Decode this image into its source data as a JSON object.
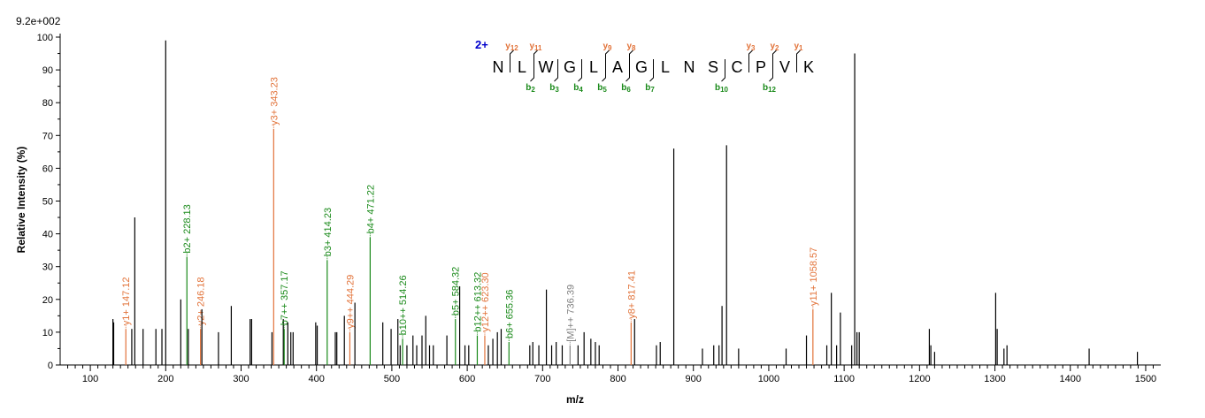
{
  "chart_data": {
    "type": "bar",
    "title": "",
    "xlabel": "m/z",
    "ylabel": "Relative   Intensity (%)",
    "scale_label": "9.2e+002",
    "xlim": [
      60,
      1520
    ],
    "ylim": [
      0,
      100
    ],
    "x_ticks": [
      100,
      200,
      300,
      400,
      500,
      600,
      700,
      800,
      900,
      1000,
      1100,
      1200,
      1300,
      1400,
      1500
    ],
    "y_ticks": [
      0,
      10,
      20,
      30,
      40,
      50,
      60,
      70,
      80,
      90,
      100
    ],
    "colors": {
      "unmatched": "#000000",
      "y_ion": "#e2733a",
      "b_ion": "#1a8a1a",
      "precursor": "#808080",
      "charge": "#0000cc"
    },
    "peaks": [
      {
        "mz": 130,
        "i": 14
      },
      {
        "mz": 131,
        "i": 13
      },
      {
        "mz": 147.12,
        "i": 11,
        "ion": "y",
        "label": "y1+ 147.12"
      },
      {
        "mz": 155,
        "i": 11
      },
      {
        "mz": 159,
        "i": 45
      },
      {
        "mz": 170,
        "i": 11
      },
      {
        "mz": 187,
        "i": 11
      },
      {
        "mz": 195,
        "i": 11
      },
      {
        "mz": 200,
        "i": 99
      },
      {
        "mz": 220,
        "i": 20
      },
      {
        "mz": 228.13,
        "i": 33,
        "ion": "b",
        "label": "b2+ 228.13"
      },
      {
        "mz": 230,
        "i": 11
      },
      {
        "mz": 246.18,
        "i": 11,
        "ion": "y",
        "label": "y2+ 246.18"
      },
      {
        "mz": 248,
        "i": 17
      },
      {
        "mz": 270,
        "i": 10
      },
      {
        "mz": 287,
        "i": 18
      },
      {
        "mz": 312,
        "i": 14
      },
      {
        "mz": 314,
        "i": 14
      },
      {
        "mz": 343.23,
        "i": 72,
        "ion": "y",
        "label": "y3+ 343.23"
      },
      {
        "mz": 341,
        "i": 10
      },
      {
        "mz": 356,
        "i": 14
      },
      {
        "mz": 357.17,
        "i": 11,
        "ion": "b",
        "label": "b7++ 357.17"
      },
      {
        "mz": 362,
        "i": 13
      },
      {
        "mz": 366,
        "i": 10
      },
      {
        "mz": 369,
        "i": 10
      },
      {
        "mz": 399,
        "i": 13
      },
      {
        "mz": 401,
        "i": 12
      },
      {
        "mz": 414.23,
        "i": 32,
        "ion": "b",
        "label": "b3+ 414.23"
      },
      {
        "mz": 425,
        "i": 10
      },
      {
        "mz": 427,
        "i": 10
      },
      {
        "mz": 437,
        "i": 15
      },
      {
        "mz": 444.29,
        "i": 10,
        "ion": "y",
        "label": "y9++ 444.29"
      },
      {
        "mz": 451,
        "i": 19
      },
      {
        "mz": 471.22,
        "i": 39,
        "ion": "b",
        "label": "b4+ 471.22"
      },
      {
        "mz": 488,
        "i": 13
      },
      {
        "mz": 499,
        "i": 11
      },
      {
        "mz": 508,
        "i": 14
      },
      {
        "mz": 511,
        "i": 6
      },
      {
        "mz": 514.26,
        "i": 8,
        "ion": "b",
        "label": "b10++ 514.26"
      },
      {
        "mz": 520,
        "i": 6
      },
      {
        "mz": 528,
        "i": 9
      },
      {
        "mz": 533,
        "i": 6
      },
      {
        "mz": 540,
        "i": 9
      },
      {
        "mz": 545,
        "i": 15
      },
      {
        "mz": 550,
        "i": 6
      },
      {
        "mz": 555,
        "i": 6
      },
      {
        "mz": 573,
        "i": 9
      },
      {
        "mz": 584.32,
        "i": 14,
        "ion": "b",
        "label": "b5+ 584.32"
      },
      {
        "mz": 590,
        "i": 24
      },
      {
        "mz": 597,
        "i": 6
      },
      {
        "mz": 602,
        "i": 6
      },
      {
        "mz": 613.32,
        "i": 9,
        "ion": "b",
        "label": "b12++ 613.32"
      },
      {
        "mz": 623.3,
        "i": 9,
        "ion": "y",
        "label": "y12++ 623.30"
      },
      {
        "mz": 628,
        "i": 6
      },
      {
        "mz": 634,
        "i": 8
      },
      {
        "mz": 640,
        "i": 10
      },
      {
        "mz": 645,
        "i": 11
      },
      {
        "mz": 655.36,
        "i": 7,
        "ion": "b",
        "label": "b6+ 655.36"
      },
      {
        "mz": 683,
        "i": 6
      },
      {
        "mz": 687,
        "i": 7
      },
      {
        "mz": 695,
        "i": 6
      },
      {
        "mz": 705,
        "i": 23
      },
      {
        "mz": 712,
        "i": 6
      },
      {
        "mz": 718,
        "i": 7
      },
      {
        "mz": 726,
        "i": 6
      },
      {
        "mz": 736.39,
        "i": 6,
        "ion": "M",
        "label": "[M]++ 736.39"
      },
      {
        "mz": 747,
        "i": 6
      },
      {
        "mz": 755,
        "i": 10
      },
      {
        "mz": 764,
        "i": 8
      },
      {
        "mz": 770,
        "i": 7
      },
      {
        "mz": 775,
        "i": 6
      },
      {
        "mz": 817.41,
        "i": 13,
        "ion": "y",
        "label": "y8+ 817.41"
      },
      {
        "mz": 822,
        "i": 14
      },
      {
        "mz": 851,
        "i": 6
      },
      {
        "mz": 856,
        "i": 7
      },
      {
        "mz": 874,
        "i": 66
      },
      {
        "mz": 912,
        "i": 5
      },
      {
        "mz": 927,
        "i": 6
      },
      {
        "mz": 934,
        "i": 6
      },
      {
        "mz": 938,
        "i": 18
      },
      {
        "mz": 944,
        "i": 67
      },
      {
        "mz": 960,
        "i": 5
      },
      {
        "mz": 1023,
        "i": 5
      },
      {
        "mz": 1050,
        "i": 9
      },
      {
        "mz": 1058.57,
        "i": 17,
        "ion": "y",
        "label": "y11+ 1058.57"
      },
      {
        "mz": 1077,
        "i": 6
      },
      {
        "mz": 1083,
        "i": 22
      },
      {
        "mz": 1090,
        "i": 6
      },
      {
        "mz": 1095,
        "i": 16
      },
      {
        "mz": 1110,
        "i": 6
      },
      {
        "mz": 1114,
        "i": 95
      },
      {
        "mz": 1117,
        "i": 10
      },
      {
        "mz": 1120,
        "i": 10
      },
      {
        "mz": 1213,
        "i": 11
      },
      {
        "mz": 1215,
        "i": 6
      },
      {
        "mz": 1220,
        "i": 4
      },
      {
        "mz": 1301,
        "i": 22
      },
      {
        "mz": 1303,
        "i": 11
      },
      {
        "mz": 1312,
        "i": 5
      },
      {
        "mz": 1316,
        "i": 6
      },
      {
        "mz": 1425,
        "i": 5
      },
      {
        "mz": 1489,
        "i": 4
      }
    ],
    "sequence": {
      "charge": "2+",
      "residues": [
        "N",
        "L",
        "W",
        "G",
        "L",
        "A",
        "G",
        "L",
        "N",
        "S",
        "C",
        "P",
        "V",
        "K"
      ],
      "y_ions": [
        {
          "after": 1,
          "name": "y",
          "sub": "12"
        },
        {
          "after": 2,
          "name": "y",
          "sub": "11"
        },
        {
          "after": 5,
          "name": "y",
          "sub": "9"
        },
        {
          "after": 6,
          "name": "y",
          "sub": "8"
        },
        {
          "after": 11,
          "name": "y",
          "sub": "3"
        },
        {
          "after": 12,
          "name": "y",
          "sub": "2"
        },
        {
          "after": 13,
          "name": "y",
          "sub": "1"
        }
      ],
      "b_ions": [
        {
          "after": 2,
          "name": "b",
          "sub": "2"
        },
        {
          "after": 3,
          "name": "b",
          "sub": "3"
        },
        {
          "after": 4,
          "name": "b",
          "sub": "4"
        },
        {
          "after": 5,
          "name": "b",
          "sub": "5"
        },
        {
          "after": 6,
          "name": "b",
          "sub": "6"
        },
        {
          "after": 7,
          "name": "b",
          "sub": "7"
        },
        {
          "after": 10,
          "name": "b",
          "sub": "10"
        },
        {
          "after": 12,
          "name": "b",
          "sub": "12"
        }
      ]
    }
  }
}
